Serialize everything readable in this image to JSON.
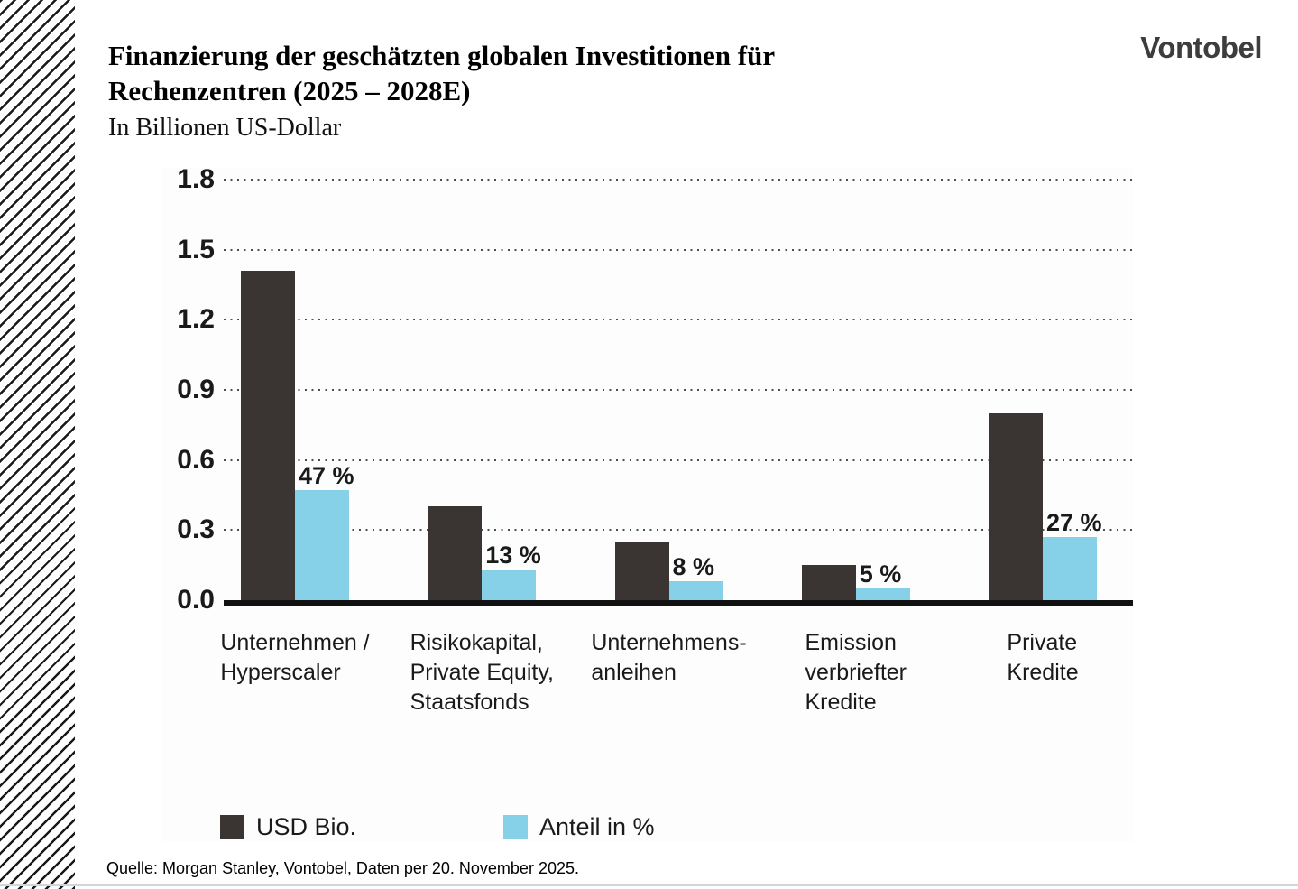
{
  "brand": {
    "logo_text": "Vontobel"
  },
  "header": {
    "title_line1": "Finanzierung der geschätzten globalen Investitionen für",
    "title_line2": "Rechenzentren (2025 – 2028E)",
    "subtitle": "In Billionen US-Dollar"
  },
  "chart_data": {
    "type": "bar",
    "title": "Finanzierung der geschätzten globalen Investitionen für Rechenzentren (2025 – 2028E)",
    "subtitle": "In Billionen US-Dollar",
    "categories": [
      "Unternehmen / Hyperscaler",
      "Risikokapital, Private Equity, Staatsfonds",
      "Unternehmens-anleihen",
      "Emission verbriefter Kredite",
      "Private Kredite"
    ],
    "categories_lines": [
      [
        "Unternehmen /",
        "Hyperscaler"
      ],
      [
        "Risikokapital,",
        "Private Equity,",
        "Staatsfonds"
      ],
      [
        "Unternehmens-",
        "anleihen"
      ],
      [
        "Emission",
        "verbriefter",
        "Kredite"
      ],
      [
        "Private",
        "Kredite"
      ]
    ],
    "series": [
      {
        "name": "USD Bio.",
        "color": "#3a3532",
        "values": [
          1.41,
          0.4,
          0.25,
          0.15,
          0.8
        ]
      },
      {
        "name": "Anteil in %",
        "color": "#86d1e7",
        "values_percent": [
          47,
          13,
          8,
          5,
          27
        ],
        "axis_values": [
          0.47,
          0.13,
          0.08,
          0.05,
          0.27
        ],
        "labels": [
          "47 %",
          "13 %",
          "8 %",
          "5 %",
          "27 %"
        ]
      }
    ],
    "ylabel": "",
    "xlabel": "",
    "ylim": [
      0,
      1.8
    ],
    "yticks": [
      "1.8",
      "1.5",
      "1.2",
      "0.9",
      "0.6",
      "0.3",
      "0.0"
    ],
    "grid": "horizontal-dotted",
    "legend_position": "bottom"
  },
  "legend": {
    "items": [
      {
        "label": "USD Bio.",
        "color": "#3a3532"
      },
      {
        "label": "Anteil in %",
        "color": "#86d1e7"
      }
    ]
  },
  "footer": {
    "source": "Quelle: Morgan Stanley, Vontobel, Daten per 20. November 2025."
  }
}
